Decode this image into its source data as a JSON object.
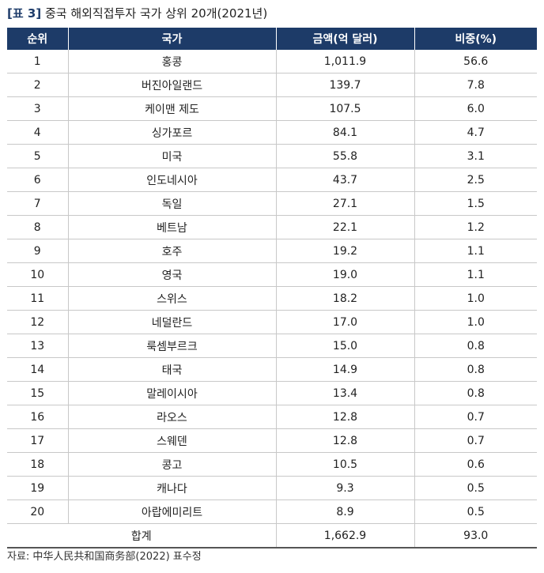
{
  "title": {
    "tag": "[표 3]",
    "text": "중국 해외직접투자 국가 상위 20개(2021년)"
  },
  "table": {
    "headers": [
      "순위",
      "국가",
      "금액(억 달러)",
      "비중(%)"
    ],
    "rows": [
      {
        "rank": "1",
        "country": "홍콩",
        "amount": "1,011.9",
        "share": "56.6"
      },
      {
        "rank": "2",
        "country": "버진아일랜드",
        "amount": "139.7",
        "share": "7.8"
      },
      {
        "rank": "3",
        "country": "케이맨 제도",
        "amount": "107.5",
        "share": "6.0"
      },
      {
        "rank": "4",
        "country": "싱가포르",
        "amount": "84.1",
        "share": "4.7"
      },
      {
        "rank": "5",
        "country": "미국",
        "amount": "55.8",
        "share": "3.1"
      },
      {
        "rank": "6",
        "country": "인도네시아",
        "amount": "43.7",
        "share": "2.5"
      },
      {
        "rank": "7",
        "country": "독일",
        "amount": "27.1",
        "share": "1.5"
      },
      {
        "rank": "8",
        "country": "베트남",
        "amount": "22.1",
        "share": "1.2"
      },
      {
        "rank": "9",
        "country": "호주",
        "amount": "19.2",
        "share": "1.1"
      },
      {
        "rank": "10",
        "country": "영국",
        "amount": "19.0",
        "share": "1.1"
      },
      {
        "rank": "11",
        "country": "스위스",
        "amount": "18.2",
        "share": "1.0"
      },
      {
        "rank": "12",
        "country": "네덜란드",
        "amount": "17.0",
        "share": "1.0"
      },
      {
        "rank": "13",
        "country": "룩셈부르크",
        "amount": "15.0",
        "share": "0.8"
      },
      {
        "rank": "14",
        "country": "태국",
        "amount": "14.9",
        "share": "0.8"
      },
      {
        "rank": "15",
        "country": "말레이시아",
        "amount": "13.4",
        "share": "0.8"
      },
      {
        "rank": "16",
        "country": "라오스",
        "amount": "12.8",
        "share": "0.7"
      },
      {
        "rank": "17",
        "country": "스웨덴",
        "amount": "12.8",
        "share": "0.7"
      },
      {
        "rank": "18",
        "country": "콩고",
        "amount": "10.5",
        "share": "0.6"
      },
      {
        "rank": "19",
        "country": "캐나다",
        "amount": "9.3",
        "share": "0.5"
      },
      {
        "rank": "20",
        "country": "아랍에미리트",
        "amount": "8.9",
        "share": "0.5"
      }
    ],
    "total": {
      "label": "합계",
      "amount": "1,662.9",
      "share": "93.0"
    }
  },
  "source": "자료: 中华人民共和国商务部(2022) 표수정"
}
